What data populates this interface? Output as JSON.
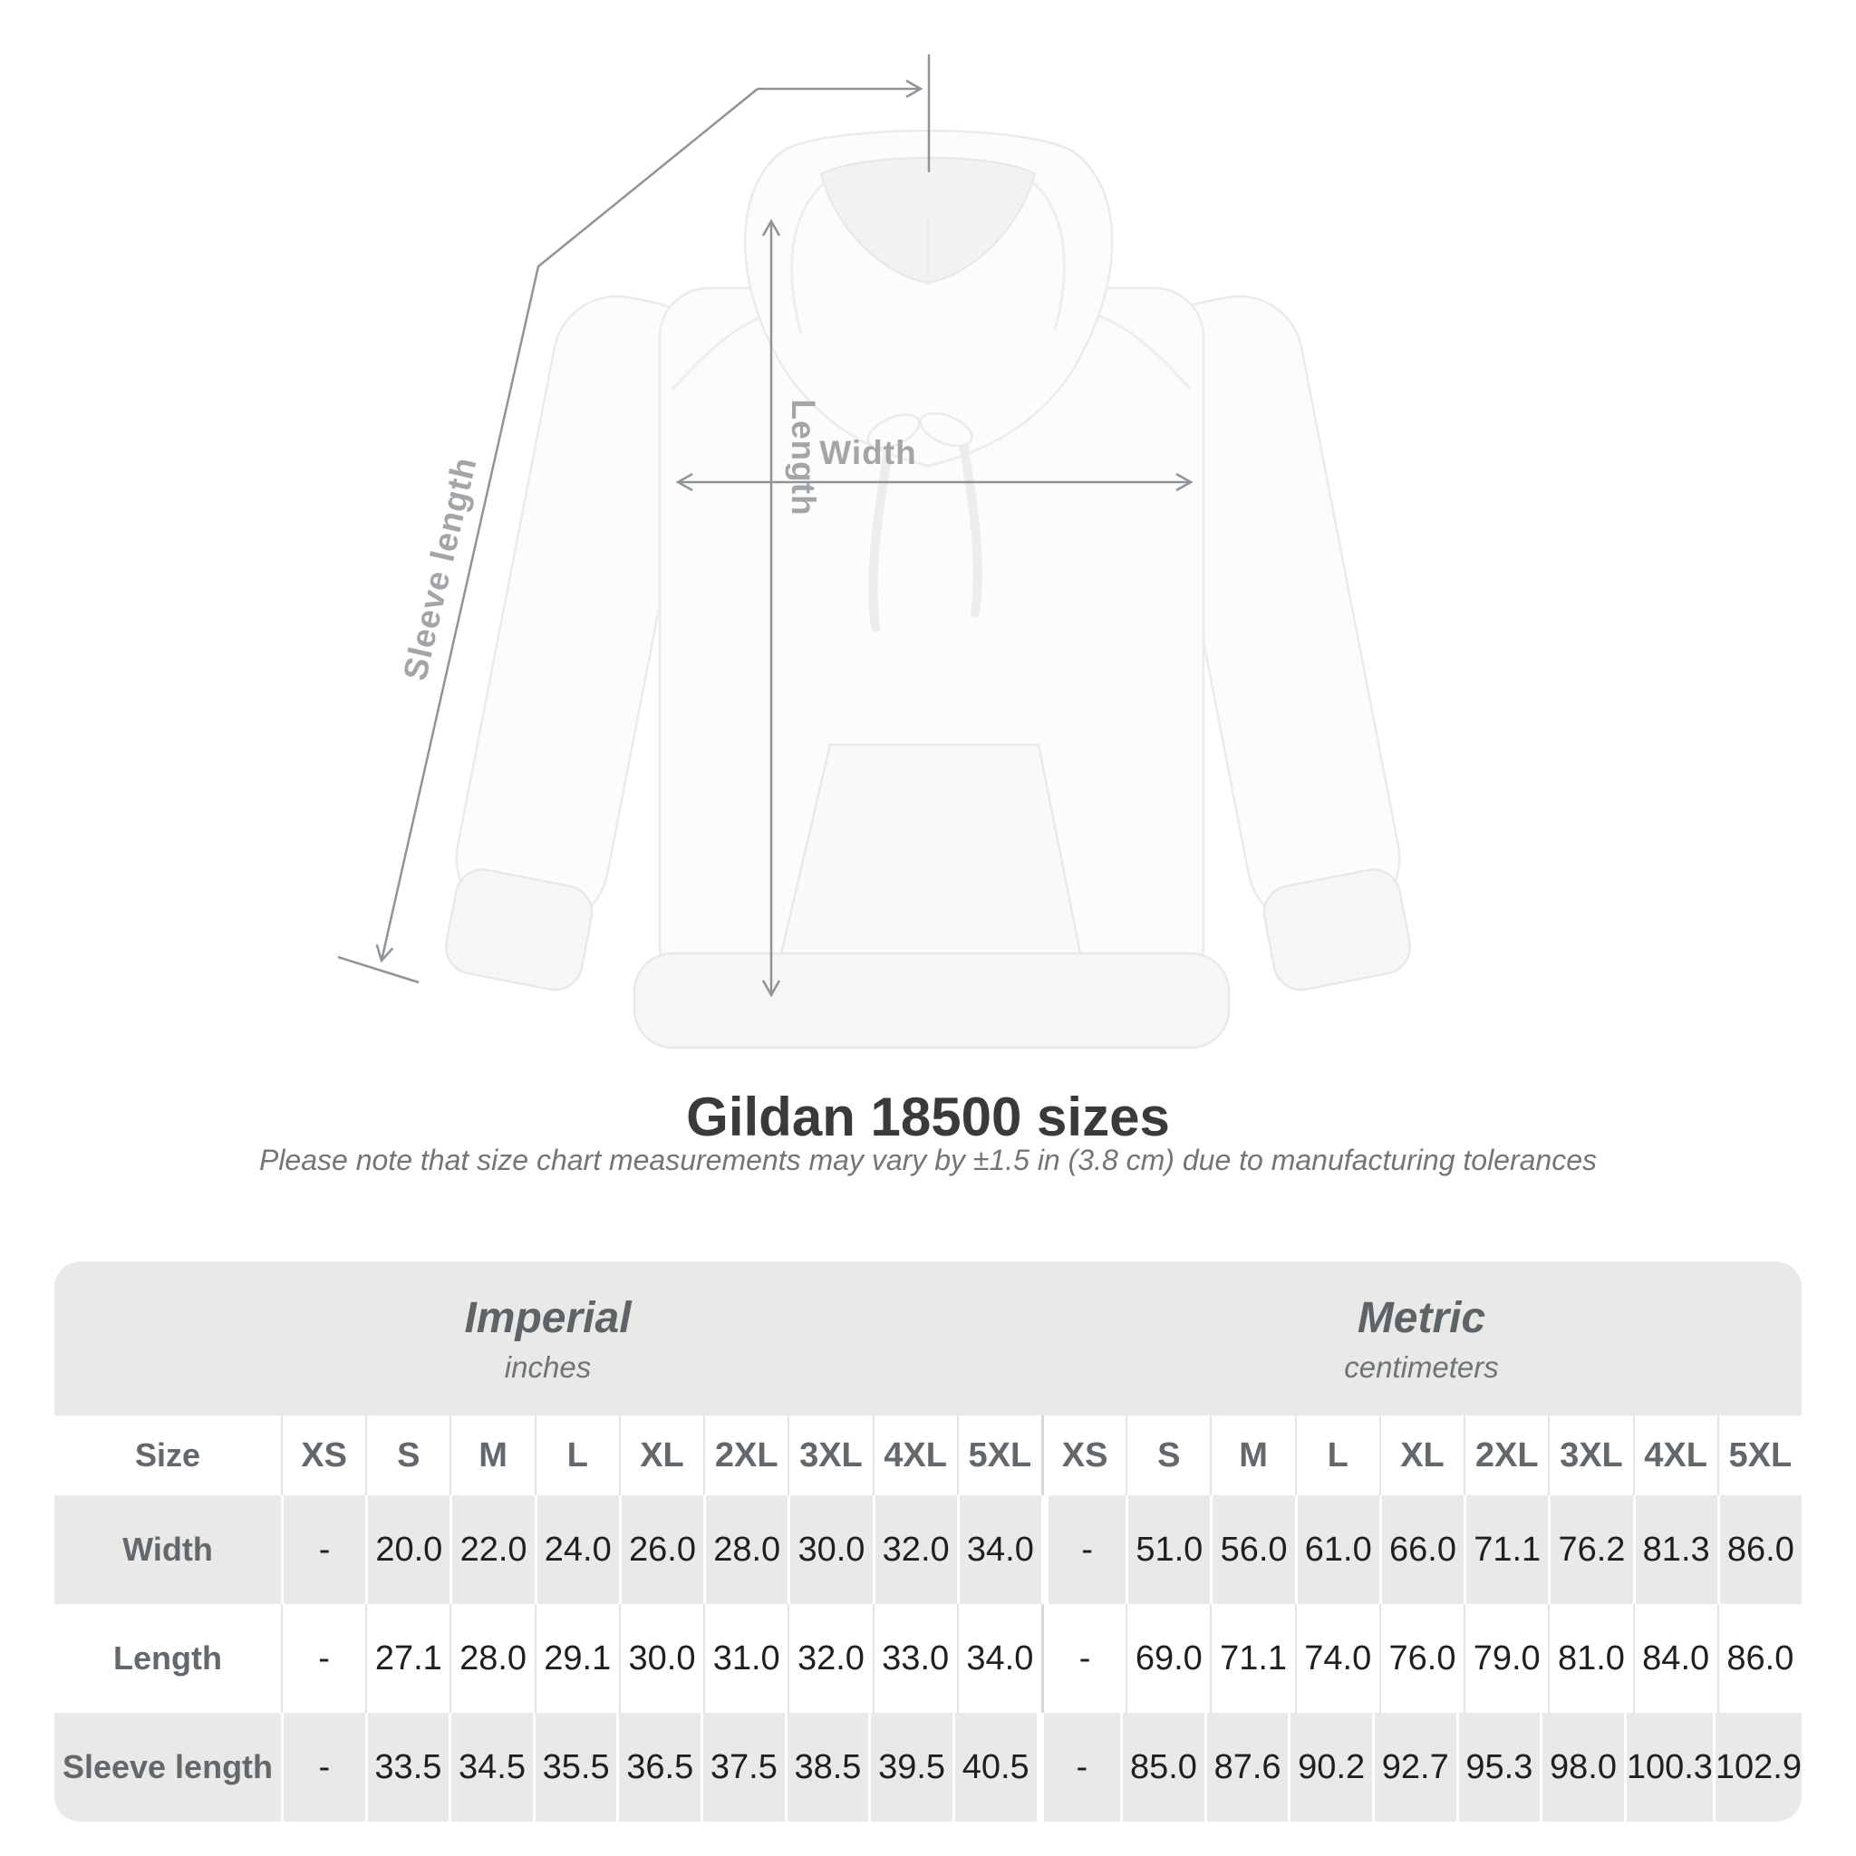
{
  "title": "Gildan 18500 sizes",
  "subtitle": "Please note that size chart measurements may vary by ±1.5 in (3.8 cm) due to manufacturing tolerances",
  "diagram": {
    "length_label": "Length",
    "width_label": "Width",
    "sleeve_label": "Sleeve length"
  },
  "table": {
    "size_header": "Size",
    "unit_groups": [
      {
        "label": "Imperial",
        "sublabel": "inches"
      },
      {
        "label": "Metric",
        "sublabel": "centimeters"
      }
    ],
    "sizes": [
      "XS",
      "S",
      "M",
      "L",
      "XL",
      "2XL",
      "3XL",
      "4XL",
      "5XL"
    ],
    "rows": [
      {
        "label": "Width",
        "imperial": [
          "-",
          "20.0",
          "22.0",
          "24.0",
          "26.0",
          "28.0",
          "30.0",
          "32.0",
          "34.0"
        ],
        "metric": [
          "-",
          "51.0",
          "56.0",
          "61.0",
          "66.0",
          "71.1",
          "76.2",
          "81.3",
          "86.0"
        ]
      },
      {
        "label": "Length",
        "imperial": [
          "-",
          "27.1",
          "28.0",
          "29.1",
          "30.0",
          "31.0",
          "32.0",
          "33.0",
          "34.0"
        ],
        "metric": [
          "-",
          "69.0",
          "71.1",
          "74.0",
          "76.0",
          "79.0",
          "81.0",
          "84.0",
          "86.0"
        ]
      },
      {
        "label": "Sleeve length",
        "imperial": [
          "-",
          "33.5",
          "34.5",
          "35.5",
          "36.5",
          "37.5",
          "38.5",
          "39.5",
          "40.5"
        ],
        "metric": [
          "-",
          "85.0",
          "87.6",
          "90.2",
          "92.7",
          "95.3",
          "98.0",
          "100.3",
          "102.9"
        ]
      }
    ]
  },
  "chart_data": {
    "type": "table",
    "title": "Gildan 18500 sizes",
    "note": "Please note that size chart measurements may vary by ±1.5 in (3.8 cm) due to manufacturing tolerances",
    "columns": [
      "Size",
      "XS",
      "S",
      "M",
      "L",
      "XL",
      "2XL",
      "3XL",
      "4XL",
      "5XL"
    ],
    "unit_groups": [
      "Imperial (inches)",
      "Metric (centimeters)"
    ],
    "rows": [
      {
        "measure": "Width",
        "imperial": [
          null,
          20.0,
          22.0,
          24.0,
          26.0,
          28.0,
          30.0,
          32.0,
          34.0
        ],
        "metric": [
          null,
          51.0,
          56.0,
          61.0,
          66.0,
          71.1,
          76.2,
          81.3,
          86.0
        ]
      },
      {
        "measure": "Length",
        "imperial": [
          null,
          27.1,
          28.0,
          29.1,
          30.0,
          31.0,
          32.0,
          33.0,
          34.0
        ],
        "metric": [
          null,
          69.0,
          71.1,
          74.0,
          76.0,
          79.0,
          81.0,
          84.0,
          86.0
        ]
      },
      {
        "measure": "Sleeve length",
        "imperial": [
          null,
          33.5,
          34.5,
          35.5,
          36.5,
          37.5,
          38.5,
          39.5,
          40.5
        ],
        "metric": [
          null,
          85.0,
          87.6,
          90.2,
          92.7,
          95.3,
          98.0,
          100.3,
          102.9
        ]
      }
    ]
  },
  "colors": {
    "row_gray": "#e9e9e8",
    "value_text": "#1f1f1f",
    "label_text": "#63686c",
    "annotation_line": "#8f9498",
    "annotation_label": "#a2a6a9",
    "title_text": "#3a3a3a"
  }
}
